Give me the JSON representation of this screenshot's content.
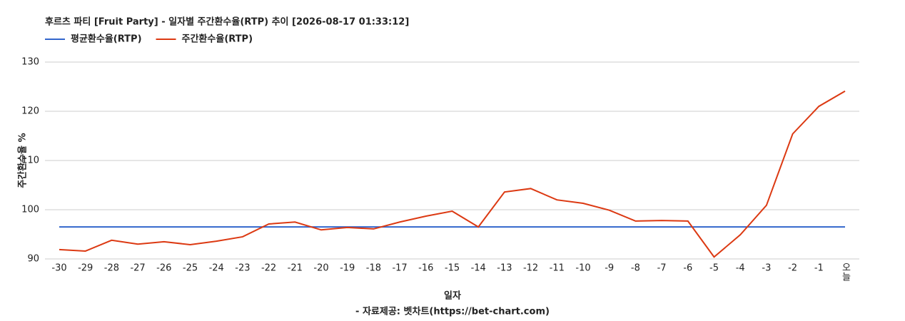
{
  "chart_data": {
    "type": "line",
    "title": "후르츠 파티 [Fruit Party] - 일자별 주간환수율(RTP) 추이 [2026-08-17 01:33:12]",
    "y_label": "주간환수율 %",
    "x_label": "일자",
    "source": "- 자료제공: 벳차트(https://bet-chart.com)",
    "categories": [
      "-30",
      "-29",
      "-28",
      "-27",
      "-26",
      "-25",
      "-24",
      "-23",
      "-22",
      "-21",
      "-20",
      "-19",
      "-18",
      "-17",
      "-16",
      "-15",
      "-14",
      "-13",
      "-12",
      "-11",
      "-10",
      "-9",
      "-8",
      "-7",
      "-6",
      "-5",
      "-4",
      "-3",
      "-2",
      "-1",
      "오늘"
    ],
    "series": [
      {
        "name": "평균환수율(RTP)",
        "color": "#3366cc",
        "values": [
          96.5,
          96.5,
          96.5,
          96.5,
          96.5,
          96.5,
          96.5,
          96.5,
          96.5,
          96.5,
          96.5,
          96.5,
          96.5,
          96.5,
          96.5,
          96.5,
          96.5,
          96.5,
          96.5,
          96.5,
          96.5,
          96.5,
          96.5,
          96.5,
          96.5,
          96.5,
          96.5,
          96.5,
          96.5,
          96.5,
          96.5
        ]
      },
      {
        "name": "주간환수율(RTP)",
        "color": "#dc3912",
        "values": [
          91.9,
          91.6,
          93.8,
          93.0,
          93.5,
          92.9,
          93.6,
          94.5,
          97.1,
          97.5,
          95.9,
          96.4,
          96.1,
          97.5,
          98.7,
          99.7,
          96.5,
          103.6,
          104.3,
          102.0,
          101.3,
          99.9,
          97.7,
          97.8,
          97.7,
          90.4,
          94.9,
          100.9,
          115.4,
          121.0,
          124.1
        ]
      }
    ],
    "ylim": [
      90,
      130
    ],
    "yticks": [
      90,
      100,
      110,
      120,
      130
    ],
    "grid": true
  }
}
